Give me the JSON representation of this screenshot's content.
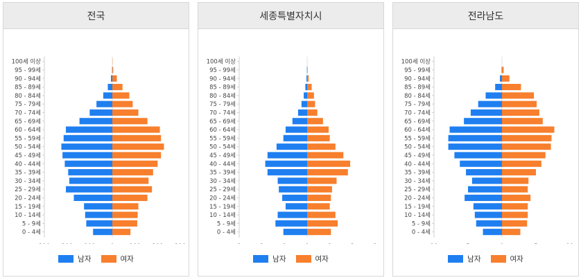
{
  "colors": {
    "male": "#1f7ff0",
    "female": "#f77f2d"
  },
  "age_groups": [
    "0 - 4세",
    "5 - 9세",
    "10 - 14세",
    "15 - 19세",
    "20 - 24세",
    "25 - 29세",
    "30 - 34세",
    "35 - 39세",
    "40 - 44세",
    "45 - 49세",
    "50 - 54세",
    "55 - 59세",
    "60 - 64세",
    "65 - 69세",
    "70 - 74세",
    "75 - 79세",
    "80 - 84세",
    "85 - 89세",
    "90 - 94세",
    "95 - 99세",
    "100세 이상"
  ],
  "chart_data": [
    {
      "type": "bar",
      "orientation": "horizontal-diverging",
      "title": "전국",
      "xlim": [
        -300,
        300
      ],
      "x_tick_values": [
        -300,
        -200,
        -100,
        0,
        100,
        200,
        300
      ],
      "x_tick_labels": [
        "300",
        "200",
        "100",
        "0",
        "100",
        "200",
        "300"
      ],
      "series": [
        {
          "name": "남자",
          "values": [
            85,
            115,
            120,
            125,
            170,
            205,
            190,
            195,
            210,
            220,
            225,
            215,
            205,
            145,
            100,
            70,
            40,
            20,
            6,
            1,
            0
          ]
        },
        {
          "name": "여자",
          "values": [
            80,
            110,
            112,
            115,
            155,
            175,
            160,
            180,
            200,
            215,
            228,
            215,
            210,
            155,
            115,
            90,
            75,
            45,
            20,
            4,
            1
          ]
        }
      ],
      "legend": [
        "남자",
        "여자"
      ]
    },
    {
      "type": "bar",
      "orientation": "horizontal-diverging",
      "title": "세종특별자치시",
      "xlim": [
        -3,
        3
      ],
      "x_tick_values": [
        -3,
        -2,
        -1,
        0,
        1,
        2,
        3
      ],
      "x_tick_labels": [
        "3",
        "2",
        "1",
        "0",
        "1",
        "2",
        "3"
      ],
      "series": [
        {
          "name": "남자",
          "values": [
            1.05,
            1.4,
            1.3,
            0.95,
            1.1,
            1.25,
            1.3,
            1.75,
            1.85,
            1.75,
            1.35,
            1.05,
            0.95,
            0.65,
            0.4,
            0.25,
            0.15,
            0.08,
            0.03,
            0.01,
            0
          ]
        },
        {
          "name": "여자",
          "values": [
            1.05,
            1.35,
            1.25,
            1.0,
            1.05,
            1.1,
            1.3,
            1.8,
            1.9,
            1.6,
            1.25,
            1.0,
            0.95,
            0.7,
            0.45,
            0.35,
            0.3,
            0.2,
            0.07,
            0.02,
            0
          ]
        }
      ],
      "legend": [
        "남자",
        "여자"
      ]
    },
    {
      "type": "bar",
      "orientation": "horizontal-diverging",
      "title": "전라남도",
      "xlim": [
        -10,
        10
      ],
      "x_tick_values": [
        -10,
        -5,
        0,
        5,
        10
      ],
      "x_tick_labels": [
        "10",
        "5",
        "0",
        "5",
        "10"
      ],
      "series": [
        {
          "name": "남자",
          "values": [
            2.8,
            3.8,
            4.0,
            4.2,
            5.5,
            5.0,
            4.4,
            5.3,
            6.2,
            7.0,
            7.9,
            7.9,
            7.7,
            5.6,
            4.6,
            3.5,
            2.4,
            1.0,
            0.3,
            0.05,
            0
          ]
        },
        {
          "name": "여자",
          "values": [
            2.7,
            3.7,
            3.8,
            3.8,
            4.2,
            3.8,
            3.9,
            5.0,
            5.8,
            6.4,
            7.2,
            7.3,
            7.7,
            6.0,
            5.5,
            5.1,
            4.7,
            2.8,
            1.1,
            0.25,
            0
          ]
        }
      ],
      "legend": [
        "남자",
        "여자"
      ]
    }
  ]
}
